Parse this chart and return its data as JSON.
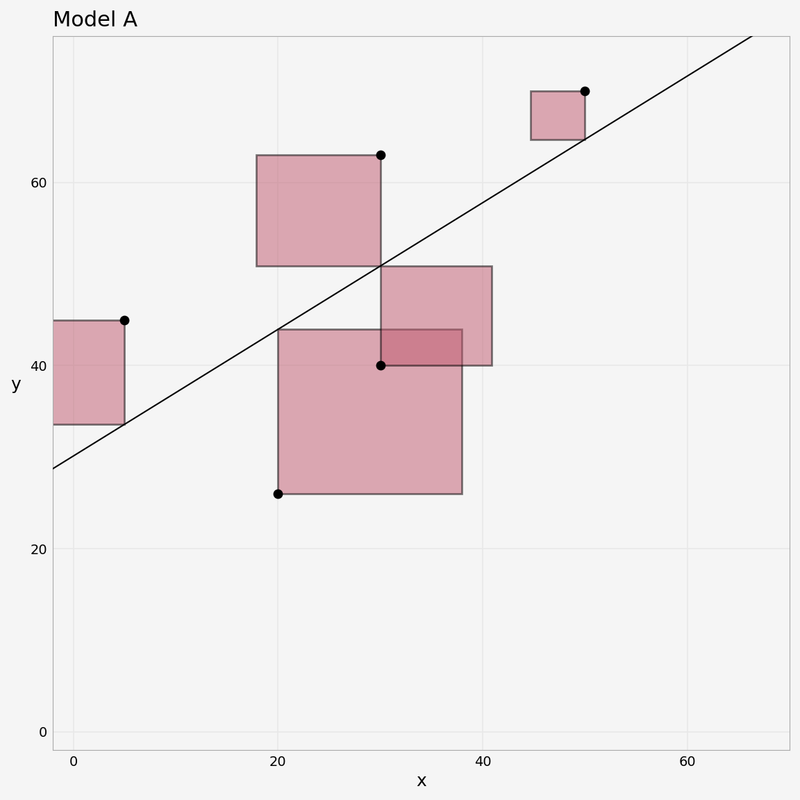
{
  "title": "Model A",
  "xlabel": "x",
  "ylabel": "y",
  "xlim": [
    -2,
    70
  ],
  "ylim": [
    -2,
    76
  ],
  "xticks": [
    0,
    20,
    40,
    60
  ],
  "yticks": [
    0,
    20,
    40,
    60
  ],
  "points": [
    [
      5,
      45
    ],
    [
      20,
      26
    ],
    [
      30,
      63
    ],
    [
      30,
      40
    ],
    [
      50,
      70
    ]
  ],
  "intercept": 26.0,
  "slope": 0.86,
  "square_color": "#c0596e",
  "square_alpha": 0.5,
  "square_edge_color": "#000000",
  "line_color": "#000000",
  "point_color": "#000000",
  "point_size": 80,
  "background_color": "#f5f5f5",
  "grid_color": "#e8e8e8",
  "title_fontsize": 22,
  "label_fontsize": 18
}
